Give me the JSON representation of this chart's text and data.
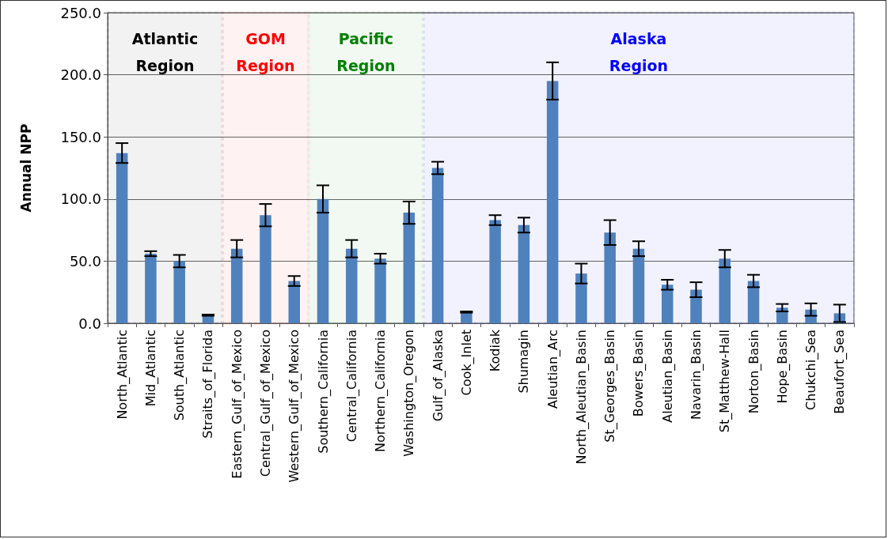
{
  "chart_data": {
    "type": "bar",
    "ylabel": "Annual NPP",
    "categories": [
      "North_Atlantic",
      "Mid_Atlantic",
      "South_Atlantic",
      "Straits_of_Florida",
      "Eastern_Gulf_of_Mexico",
      "Central_Gulf_of_Mexico",
      "Western_Gulf_of_Mexico",
      "Southern_California",
      "Central_California",
      "Northern_California",
      "Washington_Oregon",
      "Gulf_of_Alaska",
      "Cook_Inlet",
      "Kodiak",
      "Shumagin",
      "Aleutian_Arc",
      "North_Aleutian_Basin",
      "St_Georges_Basin",
      "Bowers_Basin",
      "Aleutian_Basin",
      "Navarin_Basin",
      "St_Matthew-Hall",
      "Norton_Basin",
      "Hope_Basin",
      "Chukchi_Sea",
      "Beaufort_Sea"
    ],
    "values": [
      137,
      56,
      50,
      6.5,
      60,
      87,
      34,
      100,
      60,
      52,
      89,
      125,
      9,
      83,
      79,
      195,
      40,
      73,
      60,
      31,
      27,
      52,
      34,
      12.5,
      11,
      8
    ],
    "errors": [
      8,
      2,
      5,
      0.5,
      7,
      9,
      4,
      11,
      7,
      4,
      9,
      5,
      0.5,
      4,
      6,
      15,
      8,
      10,
      6,
      4,
      6,
      7,
      5,
      3,
      5,
      7
    ],
    "color": "#4f81bd",
    "ylim": [
      0,
      250
    ],
    "yticks": [
      {
        "value": 0,
        "label": "0.0"
      },
      {
        "value": 50,
        "label": "50.0"
      },
      {
        "value": 100,
        "label": "100.0"
      },
      {
        "value": 150,
        "label": "150.0"
      },
      {
        "value": 200,
        "label": "200.0"
      },
      {
        "value": 250,
        "label": "250.0"
      }
    ],
    "grid": "y",
    "bands": [
      {
        "axis": "x",
        "from": "North_Atlantic",
        "to": "Straits_of_Florida",
        "label": "Atlantic Region",
        "color": "#000000"
      },
      {
        "axis": "x",
        "from": "Eastern_Gulf_of_Mexico",
        "to": "Western_Gulf_of_Mexico",
        "label": "GOM Region",
        "color": "#ff0000"
      },
      {
        "axis": "x",
        "from": "Southern_California",
        "to": "Washington_Oregon",
        "label": "Pacific Region",
        "color": "#008000"
      },
      {
        "axis": "x",
        "from": "Gulf_of_Alaska",
        "to": "Beaufort_Sea",
        "label": "Alaska Region",
        "color": "#0000ff"
      }
    ]
  }
}
